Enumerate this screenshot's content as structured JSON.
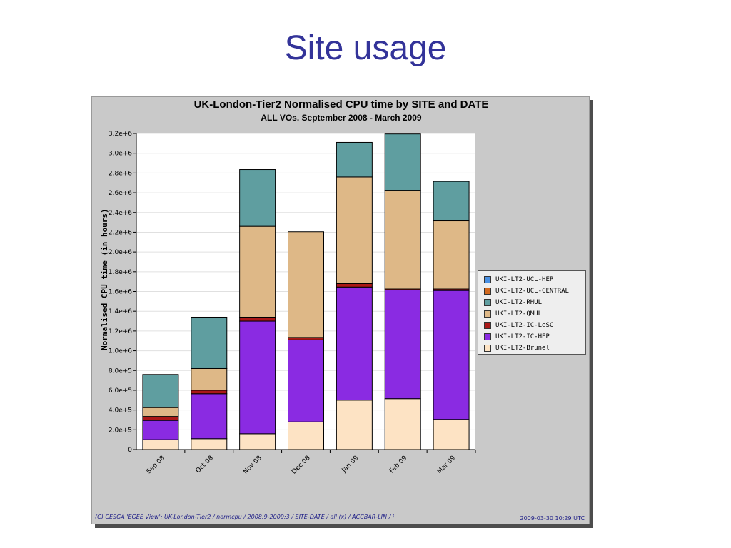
{
  "slide": {
    "title": "Site usage"
  },
  "footer": {
    "left": "(C) CESGA 'EGEE View': UK-London-Tier2 / normcpu / 2008:9-2009:3 / SITE-DATE / all (x) / ACCBAR-LIN / i",
    "right": "2009-03-30 10:29 UTC"
  },
  "chart_data": {
    "type": "bar",
    "stacked": true,
    "title": "UK-London-Tier2 Normalised CPU time by SITE and DATE",
    "subtitle": "ALL VOs. September 2008 - March 2009",
    "xlabel": "",
    "ylabel": "Normalised CPU time (in hours)",
    "ylim": [
      0,
      3200000
    ],
    "yticks": [
      0,
      200000,
      400000,
      600000,
      800000,
      1000000,
      1200000,
      1400000,
      1600000,
      1800000,
      2000000,
      2200000,
      2400000,
      2600000,
      2800000,
      3000000,
      3200000
    ],
    "ytick_labels": [
      "0",
      "2.0e+5",
      "4.0e+5",
      "6.0e+5",
      "8.0e+5",
      "1.0e+6",
      "1.2e+6",
      "1.4e+6",
      "1.6e+6",
      "1.8e+6",
      "2.0e+6",
      "2.2e+6",
      "2.4e+6",
      "2.6e+6",
      "2.8e+6",
      "3.0e+6",
      "3.2e+6"
    ],
    "categories": [
      "Sep 08",
      "Oct 08",
      "Nov 08",
      "Dec 08",
      "Jan 09",
      "Feb 09",
      "Mar 09"
    ],
    "grid": true,
    "legend_position": "right",
    "series": [
      {
        "name": "UKI-LT2-Brunel",
        "color": "#fde3c4",
        "values": [
          100000,
          110000,
          160000,
          280000,
          500000,
          515000,
          305000
        ]
      },
      {
        "name": "UKI-LT2-IC-HEP",
        "color": "#8a2be2",
        "values": [
          195000,
          455000,
          1140000,
          830000,
          1145000,
          1100000,
          1305000
        ]
      },
      {
        "name": "UKI-LT2-IC-LeSC",
        "color": "#aa1818",
        "values": [
          40000,
          35000,
          40000,
          25000,
          35000,
          10000,
          15000
        ]
      },
      {
        "name": "UKI-LT2-QMUL",
        "color": "#deb887",
        "values": [
          90000,
          220000,
          920000,
          1070000,
          1080000,
          1000000,
          690000
        ]
      },
      {
        "name": "UKI-LT2-RHUL",
        "color": "#5f9ea0",
        "values": [
          335000,
          520000,
          575000,
          0,
          350000,
          570000,
          400000
        ]
      },
      {
        "name": "UKI-LT2-UCL-CENTRAL",
        "color": "#d2691e",
        "values": [
          0,
          0,
          0,
          0,
          0,
          0,
          0
        ]
      },
      {
        "name": "UKI-LT2-UCL-HEP",
        "color": "#4a90e2",
        "values": [
          0,
          0,
          0,
          0,
          0,
          0,
          0
        ]
      }
    ],
    "legend_order": [
      "UKI-LT2-UCL-HEP",
      "UKI-LT2-UCL-CENTRAL",
      "UKI-LT2-RHUL",
      "UKI-LT2-QMUL",
      "UKI-LT2-IC-LeSC",
      "UKI-LT2-IC-HEP",
      "UKI-LT2-Brunel"
    ]
  }
}
